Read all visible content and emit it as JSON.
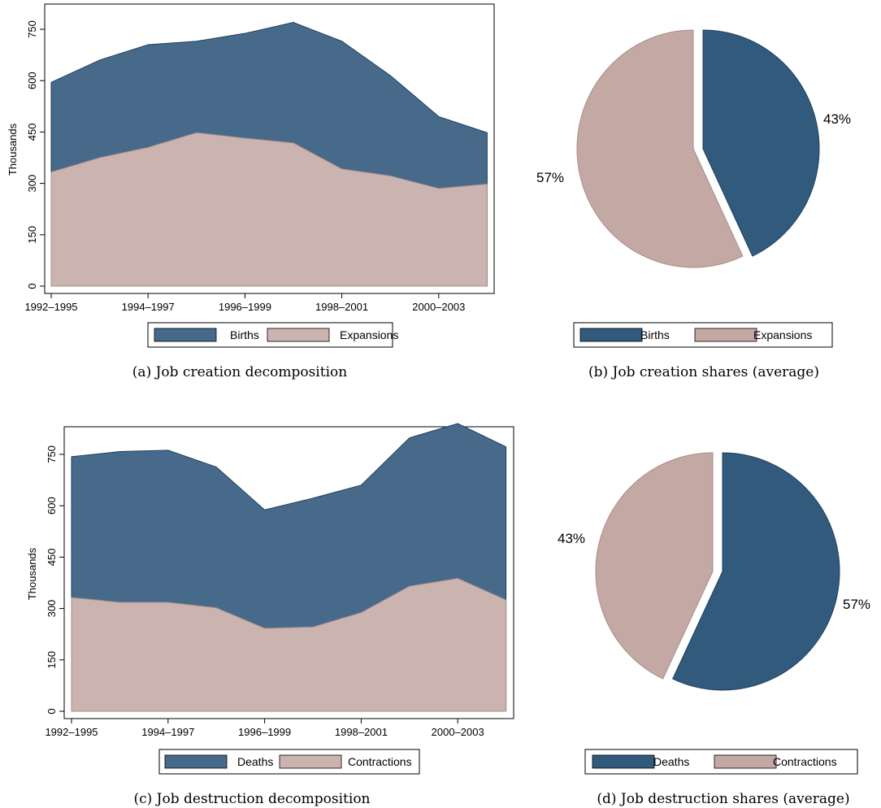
{
  "colors": {
    "births_area": "#476a8b",
    "births_pie": "#325a7d",
    "expansions_area": "#cbb4b0",
    "expansions_pie": "#c4a8a3",
    "edge_blue": "#1e3f5e",
    "edge_pink": "#a88c88"
  },
  "panels": {
    "a": {
      "caption": "(a) Job creation decomposition",
      "ylabel": "Thousands",
      "ylim": [
        0,
        800
      ],
      "yticks": [
        "0",
        "150",
        "300",
        "450",
        "600",
        "750"
      ],
      "xticks": [
        "1992–1995",
        "1994–1997",
        "1996–1999",
        "1998–2001",
        "2000–2003"
      ],
      "legend": [
        "Births",
        "Expansions"
      ]
    },
    "b": {
      "caption": "(b) Job creation shares (average)",
      "labels": [
        "43%",
        "57%"
      ],
      "legend": [
        "Births",
        "Expansions"
      ]
    },
    "c": {
      "caption": "(c) Job destruction decomposition",
      "ylabel": "Thousands",
      "ylim": [
        0,
        850
      ],
      "yticks": [
        "0",
        "150",
        "300",
        "450",
        "600",
        "750"
      ],
      "xticks": [
        "1992–1995",
        "1994–1997",
        "1996–1999",
        "1998–2001",
        "2000–2003"
      ],
      "legend": [
        "Deaths",
        "Contractions"
      ]
    },
    "d": {
      "caption": "(d) Job destruction shares (average)",
      "labels": [
        "57%",
        "43%"
      ],
      "legend": [
        "Deaths",
        "Contractions"
      ]
    }
  },
  "chart_data": [
    {
      "type": "area",
      "x": [
        "1992–1995",
        "1993–1996",
        "1994–1997",
        "1995–1998",
        "1996–1999",
        "1997–2000",
        "1998–2001",
        "1999–2002",
        "2000–2003",
        "2001–2004"
      ],
      "series": [
        {
          "name": "Births",
          "values": [
            595,
            660,
            705,
            715,
            738,
            770,
            715,
            615,
            495,
            448
          ],
          "stacked_total": true
        },
        {
          "name": "Expansions",
          "values": [
            333,
            375,
            405,
            448,
            432,
            418,
            342,
            322,
            285,
            298
          ]
        }
      ],
      "ylabel": "Thousands",
      "ylim": [
        0,
        800
      ]
    },
    {
      "type": "pie",
      "labels": [
        "Births",
        "Expansions"
      ],
      "values": [
        43,
        57
      ]
    },
    {
      "type": "area",
      "x": [
        "1992–1995",
        "1993–1996",
        "1994–1997",
        "1995–1998",
        "1996–1999",
        "1997–2000",
        "1998–2001",
        "1999–2002",
        "2000–2003",
        "2001–2004"
      ],
      "series": [
        {
          "name": "Deaths",
          "values": [
            743,
            758,
            762,
            713,
            588,
            622,
            660,
            798,
            840,
            772
          ],
          "stacked_total": true
        },
        {
          "name": "Contractions",
          "values": [
            332,
            318,
            318,
            302,
            242,
            246,
            288,
            365,
            388,
            325
          ]
        }
      ],
      "ylabel": "Thousands",
      "ylim": [
        0,
        850
      ]
    },
    {
      "type": "pie",
      "labels": [
        "Deaths",
        "Contractions"
      ],
      "values": [
        57,
        43
      ]
    }
  ]
}
